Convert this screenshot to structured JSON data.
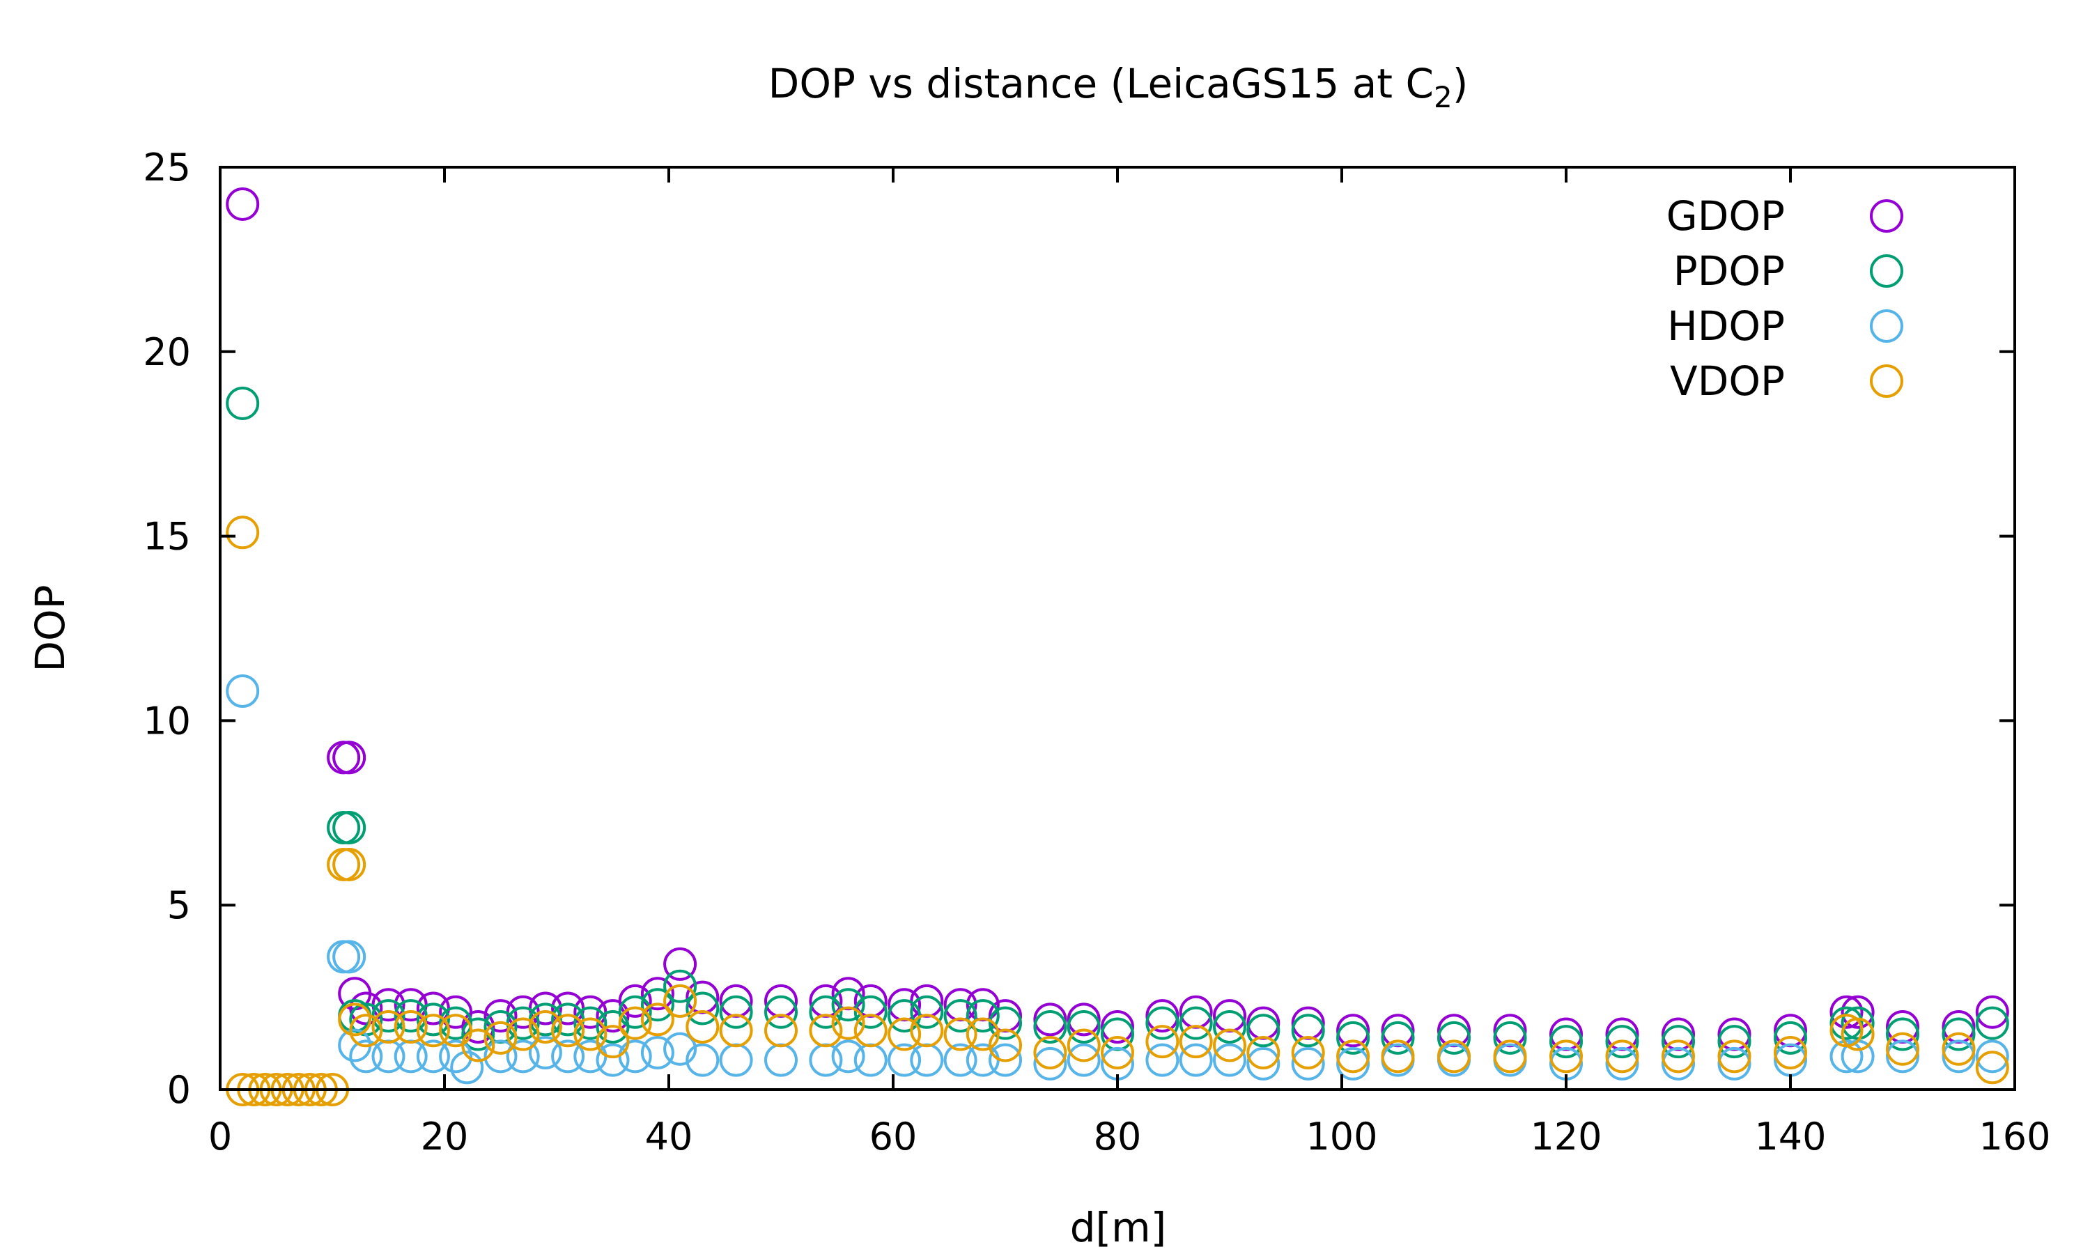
{
  "chart_data": {
    "type": "scatter",
    "title": "DOP vs distance (LeicaGS15 at C",
    "title_subscript": "2",
    "title_suffix": ")",
    "xlabel": "d[m]",
    "ylabel": "DOP",
    "xlim": [
      0,
      160
    ],
    "ylim": [
      0,
      25
    ],
    "xticks": [
      0,
      20,
      40,
      60,
      80,
      100,
      120,
      140,
      160
    ],
    "yticks": [
      0,
      5,
      10,
      15,
      20,
      25
    ],
    "grid": false,
    "legend_position": "top-right",
    "marker": "open-circle",
    "series": [
      {
        "name": "GDOP",
        "color": "#9400d3",
        "points": [
          [
            2,
            24.0
          ],
          [
            11,
            9.0
          ],
          [
            11.5,
            9.0
          ],
          [
            12,
            2.6
          ],
          [
            13,
            2.2
          ],
          [
            15,
            2.3
          ],
          [
            17,
            2.3
          ],
          [
            19,
            2.2
          ],
          [
            21,
            2.1
          ],
          [
            23,
            1.7
          ],
          [
            25,
            2.0
          ],
          [
            27,
            2.1
          ],
          [
            29,
            2.2
          ],
          [
            31,
            2.2
          ],
          [
            33,
            2.1
          ],
          [
            35,
            2.0
          ],
          [
            37,
            2.4
          ],
          [
            39,
            2.6
          ],
          [
            41,
            3.4
          ],
          [
            43,
            2.5
          ],
          [
            46,
            2.4
          ],
          [
            50,
            2.4
          ],
          [
            54,
            2.4
          ],
          [
            56,
            2.6
          ],
          [
            58,
            2.4
          ],
          [
            61,
            2.3
          ],
          [
            63,
            2.4
          ],
          [
            66,
            2.3
          ],
          [
            68,
            2.3
          ],
          [
            70,
            2.0
          ],
          [
            74,
            1.9
          ],
          [
            77,
            1.9
          ],
          [
            80,
            1.7
          ],
          [
            84,
            2.0
          ],
          [
            87,
            2.1
          ],
          [
            90,
            2.0
          ],
          [
            93,
            1.8
          ],
          [
            97,
            1.8
          ],
          [
            101,
            1.6
          ],
          [
            105,
            1.6
          ],
          [
            110,
            1.6
          ],
          [
            115,
            1.6
          ],
          [
            120,
            1.5
          ],
          [
            125,
            1.5
          ],
          [
            130,
            1.5
          ],
          [
            135,
            1.5
          ],
          [
            140,
            1.6
          ],
          [
            145,
            2.1
          ],
          [
            146,
            2.1
          ],
          [
            150,
            1.7
          ],
          [
            155,
            1.7
          ],
          [
            158,
            2.1
          ]
        ]
      },
      {
        "name": "PDOP",
        "color": "#009e73",
        "points": [
          [
            2,
            18.6
          ],
          [
            11,
            7.1
          ],
          [
            11.5,
            7.1
          ],
          [
            12,
            2.0
          ],
          [
            13,
            1.9
          ],
          [
            15,
            2.0
          ],
          [
            17,
            2.0
          ],
          [
            19,
            1.9
          ],
          [
            21,
            1.8
          ],
          [
            23,
            1.5
          ],
          [
            25,
            1.7
          ],
          [
            27,
            1.8
          ],
          [
            29,
            1.9
          ],
          [
            31,
            1.9
          ],
          [
            33,
            1.8
          ],
          [
            35,
            1.7
          ],
          [
            37,
            2.1
          ],
          [
            39,
            2.3
          ],
          [
            41,
            2.8
          ],
          [
            43,
            2.2
          ],
          [
            46,
            2.1
          ],
          [
            50,
            2.1
          ],
          [
            54,
            2.1
          ],
          [
            56,
            2.3
          ],
          [
            58,
            2.1
          ],
          [
            61,
            2.0
          ],
          [
            63,
            2.1
          ],
          [
            66,
            2.0
          ],
          [
            68,
            2.0
          ],
          [
            70,
            1.8
          ],
          [
            74,
            1.7
          ],
          [
            77,
            1.7
          ],
          [
            80,
            1.5
          ],
          [
            84,
            1.8
          ],
          [
            87,
            1.8
          ],
          [
            90,
            1.7
          ],
          [
            93,
            1.6
          ],
          [
            97,
            1.6
          ],
          [
            101,
            1.4
          ],
          [
            105,
            1.4
          ],
          [
            110,
            1.4
          ],
          [
            115,
            1.4
          ],
          [
            120,
            1.3
          ],
          [
            125,
            1.3
          ],
          [
            130,
            1.3
          ],
          [
            135,
            1.3
          ],
          [
            140,
            1.4
          ],
          [
            145,
            1.8
          ],
          [
            146,
            1.8
          ],
          [
            150,
            1.5
          ],
          [
            155,
            1.5
          ],
          [
            158,
            1.8
          ]
        ]
      },
      {
        "name": "HDOP",
        "color": "#56b4e9",
        "points": [
          [
            2,
            10.8
          ],
          [
            11,
            3.6
          ],
          [
            11.5,
            3.6
          ],
          [
            12,
            1.2
          ],
          [
            13,
            0.9
          ],
          [
            15,
            0.9
          ],
          [
            17,
            0.9
          ],
          [
            19,
            0.9
          ],
          [
            21,
            0.9
          ],
          [
            22,
            0.6
          ],
          [
            25,
            0.9
          ],
          [
            27,
            0.9
          ],
          [
            29,
            1.0
          ],
          [
            31,
            0.9
          ],
          [
            33,
            0.9
          ],
          [
            35,
            0.8
          ],
          [
            37,
            0.9
          ],
          [
            39,
            1.0
          ],
          [
            41,
            1.1
          ],
          [
            43,
            0.8
          ],
          [
            46,
            0.8
          ],
          [
            50,
            0.8
          ],
          [
            54,
            0.8
          ],
          [
            56,
            0.9
          ],
          [
            58,
            0.8
          ],
          [
            61,
            0.8
          ],
          [
            63,
            0.8
          ],
          [
            66,
            0.8
          ],
          [
            68,
            0.8
          ],
          [
            70,
            0.8
          ],
          [
            74,
            0.7
          ],
          [
            77,
            0.8
          ],
          [
            80,
            0.7
          ],
          [
            84,
            0.8
          ],
          [
            87,
            0.8
          ],
          [
            90,
            0.8
          ],
          [
            93,
            0.7
          ],
          [
            97,
            0.7
          ],
          [
            101,
            0.7
          ],
          [
            105,
            0.8
          ],
          [
            110,
            0.8
          ],
          [
            115,
            0.8
          ],
          [
            120,
            0.7
          ],
          [
            125,
            0.7
          ],
          [
            130,
            0.7
          ],
          [
            135,
            0.7
          ],
          [
            140,
            0.8
          ],
          [
            145,
            0.9
          ],
          [
            146,
            0.9
          ],
          [
            150,
            0.9
          ],
          [
            155,
            0.9
          ],
          [
            158,
            0.9
          ]
        ]
      },
      {
        "name": "VDOP",
        "color": "#e69f00",
        "points": [
          [
            2,
            15.1
          ],
          [
            2,
            0
          ],
          [
            3,
            0
          ],
          [
            4,
            0
          ],
          [
            5,
            0
          ],
          [
            6,
            0
          ],
          [
            7,
            0
          ],
          [
            8,
            0
          ],
          [
            9,
            0
          ],
          [
            10,
            0
          ],
          [
            11,
            6.1
          ],
          [
            11.5,
            6.1
          ],
          [
            12,
            1.9
          ],
          [
            13,
            1.6
          ],
          [
            15,
            1.7
          ],
          [
            17,
            1.7
          ],
          [
            19,
            1.6
          ],
          [
            21,
            1.6
          ],
          [
            23,
            1.2
          ],
          [
            25,
            1.4
          ],
          [
            27,
            1.5
          ],
          [
            29,
            1.7
          ],
          [
            31,
            1.6
          ],
          [
            33,
            1.5
          ],
          [
            35,
            1.3
          ],
          [
            37,
            1.8
          ],
          [
            39,
            1.9
          ],
          [
            41,
            2.4
          ],
          [
            43,
            1.7
          ],
          [
            46,
            1.6
          ],
          [
            50,
            1.6
          ],
          [
            54,
            1.6
          ],
          [
            56,
            1.8
          ],
          [
            58,
            1.6
          ],
          [
            61,
            1.5
          ],
          [
            63,
            1.6
          ],
          [
            66,
            1.5
          ],
          [
            68,
            1.5
          ],
          [
            70,
            1.2
          ],
          [
            74,
            1.0
          ],
          [
            77,
            1.2
          ],
          [
            80,
            1.0
          ],
          [
            84,
            1.3
          ],
          [
            87,
            1.3
          ],
          [
            90,
            1.2
          ],
          [
            93,
            1.0
          ],
          [
            97,
            1.0
          ],
          [
            101,
            0.9
          ],
          [
            105,
            0.9
          ],
          [
            110,
            0.9
          ],
          [
            115,
            0.9
          ],
          [
            120,
            0.9
          ],
          [
            125,
            0.9
          ],
          [
            130,
            0.9
          ],
          [
            135,
            0.9
          ],
          [
            140,
            1.0
          ],
          [
            145,
            1.6
          ],
          [
            146,
            1.5
          ],
          [
            150,
            1.1
          ],
          [
            155,
            1.1
          ],
          [
            158,
            0.6
          ]
        ]
      }
    ]
  }
}
